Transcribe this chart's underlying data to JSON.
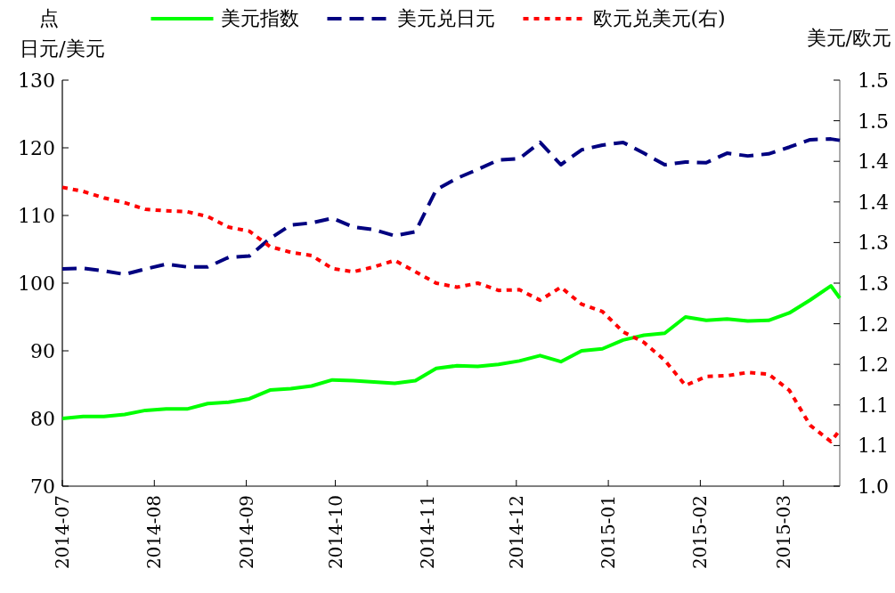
{
  "chart_data": {
    "type": "line",
    "ylabel": "日元/美元",
    "annotations": [
      "点"
    ],
    "y2label": "美元/欧元",
    "legend": "top",
    "xlim": [
      "2014-07-01",
      "2015-03-20"
    ],
    "xticks": [
      "2014-07",
      "2014-08",
      "2014-09",
      "2014-10",
      "2014-11",
      "2014-12",
      "2015-01",
      "2015-02",
      "2015-03"
    ],
    "ylim": [
      70,
      130
    ],
    "yticks": [
      70,
      80,
      90,
      100,
      110,
      120,
      130
    ],
    "y2lim": [
      1.0,
      1.5
    ],
    "y2ticks": [
      {
        "value": 1.0,
        "label": "1.0"
      },
      {
        "value": 1.05,
        "label": "1.1"
      },
      {
        "value": 1.1,
        "label": "1.1"
      },
      {
        "value": 1.15,
        "label": "1.2"
      },
      {
        "value": 1.2,
        "label": "1.2"
      },
      {
        "value": 1.25,
        "label": "1.3"
      },
      {
        "value": 1.3,
        "label": "1.3"
      },
      {
        "value": 1.35,
        "label": "1.4"
      },
      {
        "value": 1.4,
        "label": "1.4"
      },
      {
        "value": 1.45,
        "label": "1.5"
      },
      {
        "value": 1.5,
        "label": "1.5"
      }
    ],
    "x": [
      "2014-07-01",
      "2014-07-08",
      "2014-07-15",
      "2014-07-22",
      "2014-07-29",
      "2014-08-05",
      "2014-08-12",
      "2014-08-19",
      "2014-08-26",
      "2014-09-02",
      "2014-09-09",
      "2014-09-16",
      "2014-09-23",
      "2014-09-30",
      "2014-10-07",
      "2014-10-14",
      "2014-10-21",
      "2014-10-28",
      "2014-11-04",
      "2014-11-11",
      "2014-11-18",
      "2014-11-25",
      "2014-12-02",
      "2014-12-09",
      "2014-12-16",
      "2014-12-23",
      "2014-12-30",
      "2015-01-06",
      "2015-01-13",
      "2015-01-20",
      "2015-01-27",
      "2015-02-03",
      "2015-02-10",
      "2015-02-17",
      "2015-02-24",
      "2015-03-03",
      "2015-03-10",
      "2015-03-17",
      "2015-03-20"
    ],
    "series": [
      {
        "name": "美元指数",
        "color": "#00ff00",
        "line_style": "solid",
        "values": [
          80.0,
          80.3,
          80.3,
          80.6,
          81.2,
          81.4,
          81.4,
          82.2,
          82.4,
          82.9,
          84.2,
          84.4,
          84.8,
          85.7,
          85.6,
          85.4,
          85.2,
          85.6,
          87.4,
          87.8,
          87.7,
          88.0,
          88.5,
          89.3,
          88.4,
          90.0,
          90.3,
          91.6,
          92.3,
          92.6,
          95.0,
          94.5,
          94.7,
          94.4,
          94.5,
          95.6,
          97.5,
          99.6,
          97.8
        ]
      },
      {
        "name": "美元兑日元",
        "color": "#000080",
        "line_style": "dashed",
        "values": [
          102.1,
          102.2,
          101.8,
          101.3,
          102.1,
          102.8,
          102.4,
          102.4,
          103.8,
          104.0,
          106.6,
          108.6,
          108.9,
          109.6,
          108.3,
          107.9,
          107.0,
          107.6,
          113.8,
          115.5,
          116.8,
          118.2,
          118.4,
          120.8,
          117.5,
          119.7,
          120.4,
          120.8,
          119.2,
          117.5,
          117.9,
          117.8,
          119.2,
          118.8,
          119.1,
          120.1,
          121.2,
          121.3,
          121.1
        ]
      },
      {
        "name": "欧元兑美元(右)",
        "color": "#ff0000",
        "line_style": "dotted",
        "axis": "y2",
        "values": [
          1.368,
          1.363,
          1.355,
          1.349,
          1.341,
          1.339,
          1.338,
          1.332,
          1.319,
          1.314,
          1.295,
          1.288,
          1.284,
          1.268,
          1.264,
          1.27,
          1.278,
          1.264,
          1.25,
          1.245,
          1.25,
          1.241,
          1.242,
          1.229,
          1.245,
          1.224,
          1.215,
          1.19,
          1.177,
          1.155,
          1.124,
          1.135,
          1.136,
          1.14,
          1.138,
          1.118,
          1.075,
          1.055,
          1.069
        ]
      }
    ]
  }
}
